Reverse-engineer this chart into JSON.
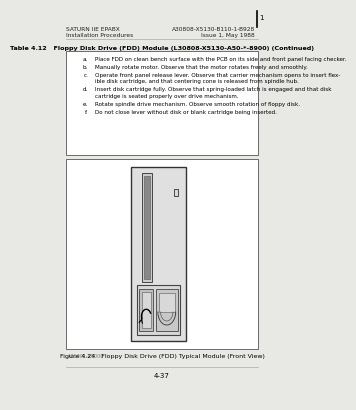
{
  "bg_color": "#e8e8e4",
  "page_bg": "#ffffff",
  "header_left_line1": "SATURN IIE EPABX",
  "header_left_line2": "Installation Procedures",
  "header_right_line1": "A30808-X5130-B110-1-B928",
  "header_right_line2": "Issue 1, May 1988",
  "table_title": "Table 4.12   Floppy Disk Drive (FDD) Module (L30808-X5130-A50-*-8900) (Continued)",
  "items": [
    [
      "a.",
      "Place FDD on clean bench surface with the PCB on its side and front panel facing checker."
    ],
    [
      "b.",
      "Manually rotate motor. Observe that the motor rotates freely and smoothly."
    ],
    [
      "c.",
      "Operate front panel release lever. Observe that carrier mechanism opens to insert flex-\nible disk cartridge, and that centering cone is released from spindle hub."
    ],
    [
      "d.",
      "Insert disk cartridge fully. Observe that spring-loaded latch is engaged and that disk\ncartridge is seated properly over drive mechanism."
    ],
    [
      "e.",
      "Rotate spindle drive mechanism. Observe smooth rotation of floppy disk."
    ],
    [
      "f.",
      "Do not close lever without disk or blank cartridge being inserted."
    ]
  ],
  "caption_left": "A31001-X5000",
  "caption": "Figure 4.24   Floppy Disk Drive (FDD) Typical Module (Front View)",
  "footer_text": "4-37",
  "page_marker": "1",
  "text_color": "#222222",
  "light_gray": "#d0d0d0",
  "mid_gray": "#b0b0b0"
}
